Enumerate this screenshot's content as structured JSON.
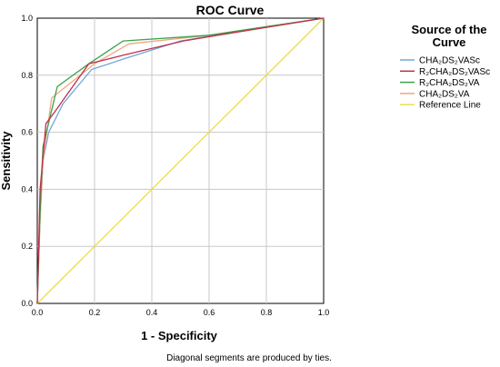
{
  "chart_data": {
    "type": "line",
    "title": "ROC Curve",
    "xlabel": "1 - Specificity",
    "ylabel": "Sensitivity",
    "xlim": [
      0,
      1
    ],
    "ylim": [
      0,
      1
    ],
    "xticks": [
      "0.0",
      "0.2",
      "0.4",
      "0.6",
      "0.8",
      "1.0"
    ],
    "yticks": [
      "0.0",
      "0.2",
      "0.4",
      "0.6",
      "0.8",
      "1.0"
    ],
    "grid": true,
    "legend_title_lines": [
      "Source of the",
      "Curve"
    ],
    "legend_position": "right",
    "footnote": "Diagonal segments are produced by ties.",
    "series": [
      {
        "name": "CHA₂DS₂VASc",
        "color": "#6fa8dc",
        "points": [
          [
            0,
            0
          ],
          [
            0.01,
            0.3
          ],
          [
            0.02,
            0.5
          ],
          [
            0.04,
            0.6
          ],
          [
            0.09,
            0.7
          ],
          [
            0.19,
            0.82
          ],
          [
            0.31,
            0.86
          ],
          [
            0.5,
            0.92
          ],
          [
            0.62,
            0.94
          ],
          [
            1,
            1
          ]
        ]
      },
      {
        "name": "R₂CHA₂DS₂VASc",
        "color": "#c0304a",
        "points": [
          [
            0,
            0
          ],
          [
            0.01,
            0.4
          ],
          [
            0.03,
            0.63
          ],
          [
            0.06,
            0.67
          ],
          [
            0.18,
            0.84
          ],
          [
            0.3,
            0.87
          ],
          [
            0.51,
            0.92
          ],
          [
            0.63,
            0.94
          ],
          [
            1,
            1
          ]
        ]
      },
      {
        "name": "R₂CHA₂DS₂VA",
        "color": "#3aa34a",
        "points": [
          [
            0,
            0
          ],
          [
            0.01,
            0.32
          ],
          [
            0.02,
            0.55
          ],
          [
            0.07,
            0.76
          ],
          [
            0.18,
            0.84
          ],
          [
            0.3,
            0.92
          ],
          [
            0.6,
            0.94
          ],
          [
            1,
            1
          ]
        ]
      },
      {
        "name": "CHA₂DS₂VA",
        "color": "#f4a582",
        "points": [
          [
            0,
            0
          ],
          [
            0.01,
            0.3
          ],
          [
            0.02,
            0.5
          ],
          [
            0.05,
            0.72
          ],
          [
            0.2,
            0.84
          ],
          [
            0.32,
            0.91
          ],
          [
            0.6,
            0.94
          ],
          [
            1,
            1
          ]
        ]
      },
      {
        "name": "Reference Line",
        "color": "#e8e04a",
        "points": [
          [
            0,
            0
          ],
          [
            1,
            1
          ]
        ]
      }
    ]
  }
}
